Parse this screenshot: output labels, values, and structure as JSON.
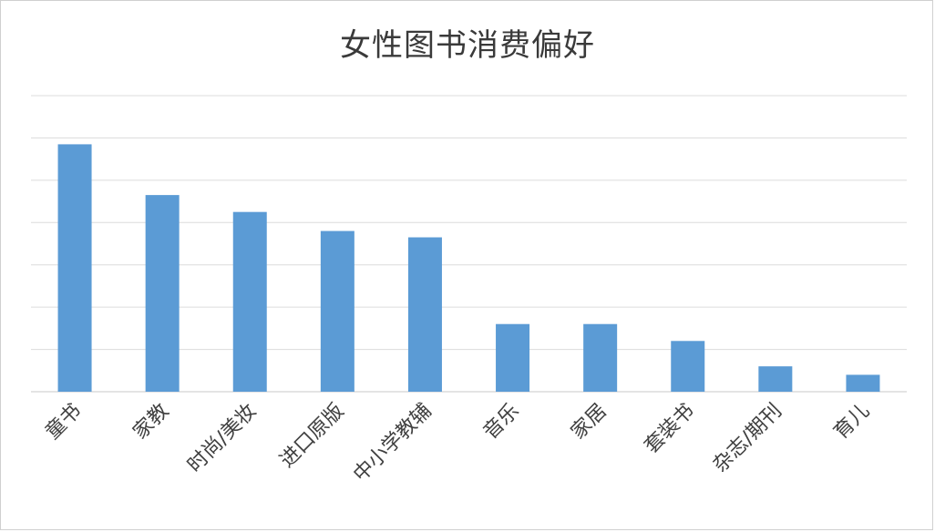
{
  "chart_data": {
    "type": "bar",
    "title": "女性图书消费偏好",
    "xlabel": "",
    "ylabel": "",
    "categories": [
      "童书",
      "家教",
      "时尚/美妆",
      "进口原版",
      "中小学教辅",
      "音乐",
      "家居",
      "套装书",
      "杂志/期刊",
      "育儿"
    ],
    "values": [
      58.5,
      46.5,
      42.5,
      38,
      36.5,
      16,
      16,
      12,
      6,
      4
    ],
    "ylim": [
      0,
      70
    ],
    "grid": true,
    "bar_color": "#5b9bd5"
  }
}
